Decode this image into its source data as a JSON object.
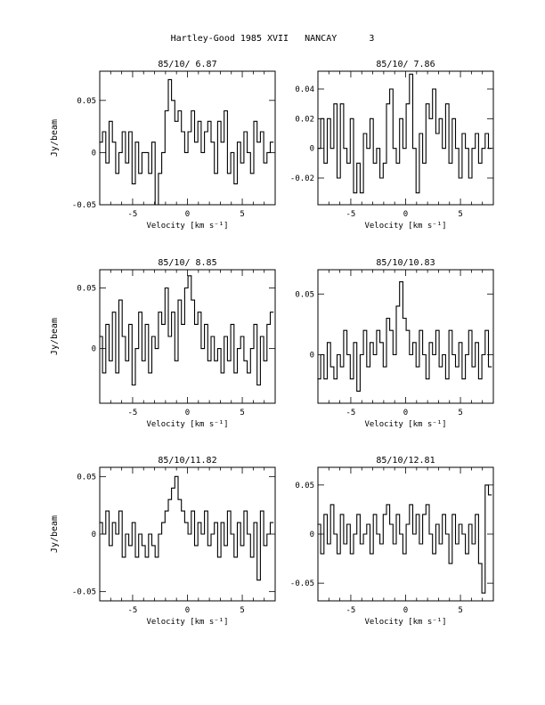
{
  "page": {
    "title": "Hartley-Good 1985 XVII   NANCAY      3"
  },
  "chart_data": [
    {
      "type": "line",
      "title": "85/10/ 6.87",
      "xlabel": "Velocity [km s⁻¹]",
      "ylabel": "Jy/beam",
      "xlim": [
        -8,
        8
      ],
      "ylim": [
        -0.05,
        0.078
      ],
      "xticks": [
        -5,
        0,
        5
      ],
      "yticks": [
        0,
        0.05,
        -0.05
      ],
      "ytick_labels": [
        "0",
        "0.05",
        "-0.05"
      ],
      "x": [
        -7.9,
        -7.6,
        -7.3,
        -7.0,
        -6.7,
        -6.4,
        -6.1,
        -5.8,
        -5.5,
        -5.2,
        -4.9,
        -4.6,
        -4.3,
        -4.0,
        -3.7,
        -3.4,
        -3.1,
        -2.8,
        -2.5,
        -2.2,
        -1.9,
        -1.6,
        -1.3,
        -1.0,
        -0.7,
        -0.4,
        -0.1,
        0.2,
        0.5,
        0.8,
        1.1,
        1.4,
        1.7,
        2.0,
        2.3,
        2.6,
        2.9,
        3.2,
        3.5,
        3.8,
        4.1,
        4.4,
        4.7,
        5.0,
        5.3,
        5.6,
        5.9,
        6.2,
        6.5,
        6.8,
        7.1,
        7.4,
        7.7
      ],
      "series": [
        {
          "values": [
            0.01,
            0.02,
            -0.01,
            0.03,
            0.01,
            -0.02,
            0.0,
            0.02,
            -0.01,
            0.02,
            -0.03,
            0.01,
            -0.02,
            0.0,
            0.0,
            -0.02,
            0.01,
            -0.05,
            -0.02,
            0.0,
            0.04,
            0.07,
            0.05,
            0.03,
            0.04,
            0.02,
            0.0,
            0.02,
            0.04,
            0.01,
            0.03,
            0.0,
            0.02,
            0.03,
            0.01,
            -0.02,
            0.03,
            0.01,
            0.04,
            -0.02,
            0.0,
            -0.03,
            0.01,
            -0.01,
            0.02,
            0.0,
            -0.02,
            0.03,
            0.01,
            0.02,
            -0.01,
            0.0,
            0.01
          ]
        }
      ]
    },
    {
      "type": "line",
      "title": "85/10/ 7.86",
      "xlabel": "Velocity [km s⁻¹]",
      "ylabel": "",
      "xlim": [
        -8,
        8
      ],
      "ylim": [
        -0.038,
        0.052
      ],
      "xticks": [
        -5,
        0,
        5
      ],
      "yticks": [
        0.04,
        0.02,
        0,
        -0.02
      ],
      "ytick_labels": [
        "0.04",
        "0.02",
        "0",
        "-0.02"
      ],
      "x": [
        -7.9,
        -7.6,
        -7.3,
        -7.0,
        -6.7,
        -6.4,
        -6.1,
        -5.8,
        -5.5,
        -5.2,
        -4.9,
        -4.6,
        -4.3,
        -4.0,
        -3.7,
        -3.4,
        -3.1,
        -2.8,
        -2.5,
        -2.2,
        -1.9,
        -1.6,
        -1.3,
        -1.0,
        -0.7,
        -0.4,
        -0.1,
        0.2,
        0.5,
        0.8,
        1.1,
        1.4,
        1.7,
        2.0,
        2.3,
        2.6,
        2.9,
        3.2,
        3.5,
        3.8,
        4.1,
        4.4,
        4.7,
        5.0,
        5.3,
        5.6,
        5.9,
        6.2,
        6.5,
        6.8,
        7.1,
        7.4,
        7.7
      ],
      "series": [
        {
          "values": [
            0.0,
            0.02,
            -0.01,
            0.02,
            0.0,
            0.03,
            -0.02,
            0.03,
            0.0,
            -0.01,
            0.02,
            -0.03,
            -0.01,
            -0.03,
            0.01,
            0.0,
            0.02,
            -0.01,
            0.0,
            -0.02,
            -0.01,
            0.03,
            0.04,
            0.0,
            -0.01,
            0.02,
            0.0,
            0.03,
            0.05,
            0.0,
            -0.03,
            0.01,
            -0.01,
            0.03,
            0.02,
            0.04,
            0.01,
            0.02,
            0.0,
            0.03,
            -0.01,
            0.02,
            0.0,
            -0.02,
            0.01,
            0.0,
            -0.02,
            0.0,
            0.01,
            -0.01,
            0.0,
            0.01,
            0.0
          ]
        }
      ]
    },
    {
      "type": "line",
      "title": "85/10/ 8.85",
      "xlabel": "Velocity [km s⁻¹]",
      "ylabel": "Jy/beam",
      "xlim": [
        -8,
        8
      ],
      "ylim": [
        -0.045,
        0.065
      ],
      "xticks": [
        -5,
        0,
        5
      ],
      "yticks": [
        0.05,
        0
      ],
      "ytick_labels": [
        "0.05",
        "0"
      ],
      "x": [
        -7.9,
        -7.6,
        -7.3,
        -7.0,
        -6.7,
        -6.4,
        -6.1,
        -5.8,
        -5.5,
        -5.2,
        -4.9,
        -4.6,
        -4.3,
        -4.0,
        -3.7,
        -3.4,
        -3.1,
        -2.8,
        -2.5,
        -2.2,
        -1.9,
        -1.6,
        -1.3,
        -1.0,
        -0.7,
        -0.4,
        -0.1,
        0.2,
        0.5,
        0.8,
        1.1,
        1.4,
        1.7,
        2.0,
        2.3,
        2.6,
        2.9,
        3.2,
        3.5,
        3.8,
        4.1,
        4.4,
        4.7,
        5.0,
        5.3,
        5.6,
        5.9,
        6.2,
        6.5,
        6.8,
        7.1,
        7.4,
        7.7
      ],
      "series": [
        {
          "values": [
            0.01,
            -0.02,
            0.02,
            -0.01,
            0.03,
            -0.02,
            0.04,
            0.01,
            -0.01,
            0.02,
            -0.03,
            0.0,
            0.03,
            -0.01,
            0.02,
            -0.02,
            0.01,
            0.0,
            0.03,
            0.02,
            0.05,
            0.01,
            0.03,
            -0.01,
            0.04,
            0.02,
            0.05,
            0.06,
            0.04,
            0.02,
            0.03,
            0.0,
            0.02,
            -0.01,
            0.01,
            -0.01,
            0.0,
            -0.02,
            0.01,
            -0.01,
            0.02,
            -0.02,
            0.0,
            0.01,
            -0.01,
            -0.02,
            0.0,
            0.02,
            -0.03,
            0.01,
            -0.01,
            0.02,
            0.03
          ]
        }
      ]
    },
    {
      "type": "line",
      "title": "85/10/10.83",
      "xlabel": "Velocity [km s⁻¹]",
      "ylabel": "",
      "xlim": [
        -8,
        8
      ],
      "ylim": [
        -0.04,
        0.07
      ],
      "xticks": [
        -5,
        0,
        5
      ],
      "yticks": [
        0.05,
        0
      ],
      "ytick_labels": [
        "0.05",
        "0"
      ],
      "x": [
        -7.9,
        -7.6,
        -7.3,
        -7.0,
        -6.7,
        -6.4,
        -6.1,
        -5.8,
        -5.5,
        -5.2,
        -4.9,
        -4.6,
        -4.3,
        -4.0,
        -3.7,
        -3.4,
        -3.1,
        -2.8,
        -2.5,
        -2.2,
        -1.9,
        -1.6,
        -1.3,
        -1.0,
        -0.7,
        -0.4,
        -0.1,
        0.2,
        0.5,
        0.8,
        1.1,
        1.4,
        1.7,
        2.0,
        2.3,
        2.6,
        2.9,
        3.2,
        3.5,
        3.8,
        4.1,
        4.4,
        4.7,
        5.0,
        5.3,
        5.6,
        5.9,
        6.2,
        6.5,
        6.8,
        7.1,
        7.4,
        7.7
      ],
      "series": [
        {
          "values": [
            -0.02,
            0.0,
            -0.02,
            0.01,
            -0.01,
            -0.02,
            0.0,
            -0.01,
            0.02,
            0.0,
            -0.02,
            0.01,
            -0.03,
            0.0,
            0.02,
            -0.01,
            0.01,
            0.0,
            0.02,
            0.01,
            -0.01,
            0.03,
            0.02,
            0.0,
            0.04,
            0.06,
            0.03,
            0.02,
            0.0,
            0.01,
            -0.01,
            0.02,
            0.0,
            -0.02,
            0.01,
            0.0,
            0.02,
            -0.01,
            0.0,
            -0.02,
            0.02,
            0.0,
            -0.01,
            0.01,
            -0.02,
            0.0,
            0.02,
            -0.01,
            0.01,
            -0.02,
            0.0,
            0.02,
            -0.01
          ]
        }
      ]
    },
    {
      "type": "line",
      "title": "85/10/11.82",
      "xlabel": "Velocity [km s⁻¹]",
      "ylabel": "Jy/beam",
      "xlim": [
        -8,
        8
      ],
      "ylim": [
        -0.058,
        0.058
      ],
      "xticks": [
        -5,
        0,
        5
      ],
      "yticks": [
        0.05,
        0,
        -0.05
      ],
      "ytick_labels": [
        "0.05",
        "0",
        "-0.05"
      ],
      "x": [
        -7.9,
        -7.6,
        -7.3,
        -7.0,
        -6.7,
        -6.4,
        -6.1,
        -5.8,
        -5.5,
        -5.2,
        -4.9,
        -4.6,
        -4.3,
        -4.0,
        -3.7,
        -3.4,
        -3.1,
        -2.8,
        -2.5,
        -2.2,
        -1.9,
        -1.6,
        -1.3,
        -1.0,
        -0.7,
        -0.4,
        -0.1,
        0.2,
        0.5,
        0.8,
        1.1,
        1.4,
        1.7,
        2.0,
        2.3,
        2.6,
        2.9,
        3.2,
        3.5,
        3.8,
        4.1,
        4.4,
        4.7,
        5.0,
        5.3,
        5.6,
        5.9,
        6.2,
        6.5,
        6.8,
        7.1,
        7.4,
        7.7
      ],
      "series": [
        {
          "values": [
            0.01,
            0.0,
            0.02,
            -0.01,
            0.01,
            0.0,
            0.02,
            -0.02,
            0.0,
            -0.01,
            0.01,
            -0.02,
            0.0,
            -0.01,
            -0.02,
            0.0,
            -0.01,
            -0.02,
            0.0,
            0.01,
            0.02,
            0.03,
            0.04,
            0.05,
            0.03,
            0.02,
            0.01,
            0.0,
            0.02,
            -0.01,
            0.01,
            0.0,
            0.02,
            -0.01,
            0.0,
            0.01,
            -0.02,
            0.01,
            -0.01,
            0.02,
            0.0,
            -0.02,
            0.01,
            -0.01,
            0.02,
            0.0,
            -0.02,
            0.01,
            -0.04,
            0.02,
            -0.01,
            0.0,
            0.01
          ]
        }
      ]
    },
    {
      "type": "line",
      "title": "85/10/12.81",
      "xlabel": "Velocity [km s⁻¹]",
      "ylabel": "",
      "xlim": [
        -8,
        8
      ],
      "ylim": [
        -0.068,
        0.068
      ],
      "xticks": [
        -5,
        0,
        5
      ],
      "yticks": [
        0.05,
        0,
        -0.05
      ],
      "ytick_labels": [
        "0.05",
        "0",
        "-0.05"
      ],
      "x": [
        -7.9,
        -7.6,
        -7.3,
        -7.0,
        -6.7,
        -6.4,
        -6.1,
        -5.8,
        -5.5,
        -5.2,
        -4.9,
        -4.6,
        -4.3,
        -4.0,
        -3.7,
        -3.4,
        -3.1,
        -2.8,
        -2.5,
        -2.2,
        -1.9,
        -1.6,
        -1.3,
        -1.0,
        -0.7,
        -0.4,
        -0.1,
        0.2,
        0.5,
        0.8,
        1.1,
        1.4,
        1.7,
        2.0,
        2.3,
        2.6,
        2.9,
        3.2,
        3.5,
        3.8,
        4.1,
        4.4,
        4.7,
        5.0,
        5.3,
        5.6,
        5.9,
        6.2,
        6.5,
        6.8,
        7.1,
        7.4,
        7.7
      ],
      "series": [
        {
          "values": [
            0.01,
            -0.02,
            0.02,
            -0.01,
            0.03,
            0.0,
            -0.02,
            0.02,
            -0.01,
            0.01,
            -0.02,
            0.0,
            0.02,
            -0.01,
            0.0,
            0.01,
            -0.02,
            0.02,
            0.0,
            -0.01,
            0.02,
            0.03,
            0.01,
            -0.01,
            0.02,
            0.0,
            -0.02,
            0.01,
            0.03,
            0.0,
            0.02,
            -0.01,
            0.02,
            0.03,
            0.0,
            -0.02,
            0.01,
            -0.01,
            0.02,
            0.0,
            -0.03,
            0.02,
            -0.01,
            0.01,
            0.0,
            -0.02,
            0.01,
            -0.01,
            0.02,
            -0.03,
            -0.06,
            0.05,
            0.04
          ]
        }
      ]
    }
  ]
}
